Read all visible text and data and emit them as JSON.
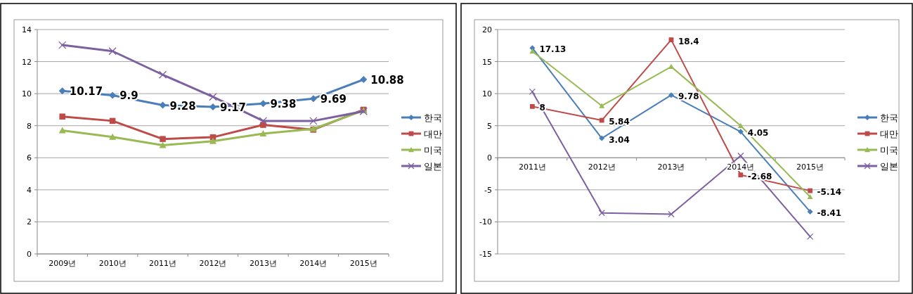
{
  "chart_data": [
    {
      "type": "line",
      "categories": [
        "2009년",
        "2010년",
        "2011년",
        "2012년",
        "2013년",
        "2014년",
        "2015년"
      ],
      "ylim": [
        0,
        14
      ],
      "yticks": [
        0,
        2,
        4,
        6,
        8,
        10,
        12,
        14
      ],
      "grid": "y",
      "legend": "right",
      "line_style": "solid",
      "series": [
        {
          "name": "한국",
          "color": "#4a7ebb",
          "marker": "diamond",
          "values": [
            10.17,
            9.9,
            9.28,
            9.17,
            9.38,
            9.69,
            10.88
          ],
          "value_labels": [
            "10.17",
            "9.9",
            "9.28",
            "9.17",
            "9.38",
            "9.69",
            "10.88"
          ]
        },
        {
          "name": "대만",
          "color": "#be4b48",
          "marker": "square",
          "values": [
            8.57,
            8.3,
            7.17,
            7.28,
            8.05,
            7.75,
            9.0
          ]
        },
        {
          "name": "미국",
          "color": "#98b954",
          "marker": "triangle",
          "values": [
            7.7,
            7.3,
            6.78,
            7.03,
            7.5,
            7.8,
            8.95
          ]
        },
        {
          "name": "일본",
          "color": "#7d60a0",
          "marker": "cross",
          "values": [
            13.03,
            12.65,
            11.18,
            9.8,
            8.3,
            8.3,
            8.9
          ]
        }
      ]
    },
    {
      "type": "line",
      "categories": [
        "2011년",
        "2012년",
        "2013년",
        "2014년",
        "2015년"
      ],
      "ylim": [
        -15,
        20
      ],
      "yticks": [
        -15,
        -10,
        -5,
        0,
        5,
        10,
        15,
        20
      ],
      "grid": "y",
      "legend": "right",
      "line_style": "solid",
      "series": [
        {
          "name": "한국",
          "color": "#4a7ebb",
          "marker": "diamond",
          "values": [
            17.13,
            3.04,
            9.78,
            4.05,
            -8.41
          ],
          "value_labels": [
            "17.13",
            "3.04",
            "9.78",
            "4.05",
            "-8.41"
          ]
        },
        {
          "name": "대만",
          "color": "#be4b48",
          "marker": "square",
          "values": [
            8,
            5.84,
            18.4,
            -2.68,
            -5.14
          ],
          "value_labels": [
            "8",
            "5.84",
            "18.4",
            "-2.68",
            "-5.14"
          ]
        },
        {
          "name": "미국",
          "color": "#98b954",
          "marker": "triangle",
          "values": [
            16.6,
            8.1,
            14.2,
            5.0,
            -6.1
          ]
        },
        {
          "name": "일본",
          "color": "#7d60a0",
          "marker": "cross",
          "values": [
            10.3,
            -8.6,
            -8.8,
            0.3,
            -12.3
          ]
        }
      ]
    }
  ]
}
